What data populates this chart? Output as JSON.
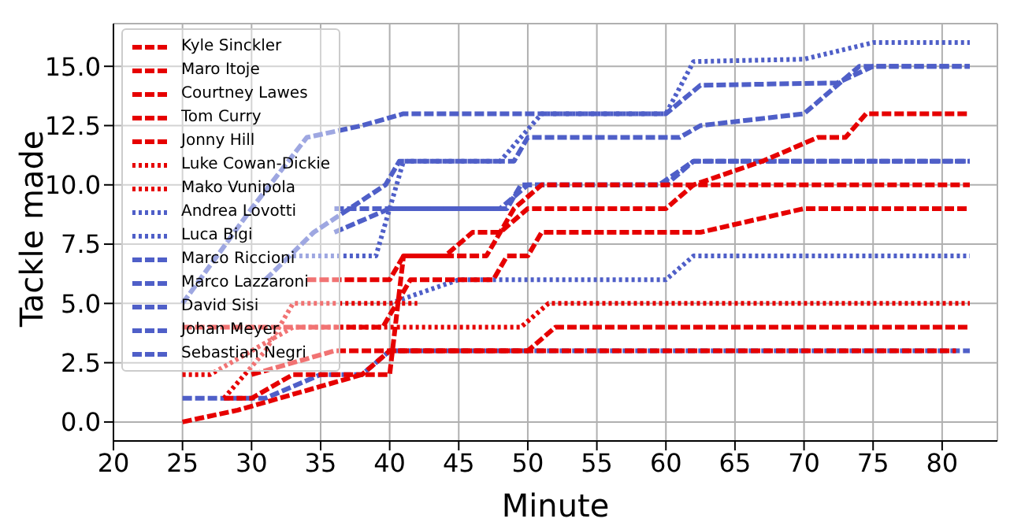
{
  "chart_data": {
    "type": "line",
    "xlabel": "Minute",
    "ylabel": "Tackle made",
    "xlim": [
      20,
      84
    ],
    "xticks": [
      20,
      25,
      30,
      35,
      40,
      45,
      50,
      55,
      60,
      65,
      70,
      75,
      80
    ],
    "ylim": [
      -0.8,
      16.8
    ],
    "yticks": [
      {
        "value": 0,
        "label": "0.0"
      },
      {
        "value": 2.5,
        "label": "2.5"
      },
      {
        "value": 5,
        "label": "5.0"
      },
      {
        "value": 7.5,
        "label": "7.5"
      },
      {
        "value": 10,
        "label": "10.0"
      },
      {
        "value": 12.5,
        "label": "12.5"
      },
      {
        "value": 15,
        "label": "15.0"
      }
    ],
    "grid": true,
    "legend": "top left",
    "series": [
      {
        "name": "Kyle Sinckler",
        "color": "#e60000",
        "line_style": "dashed",
        "x": [
          34,
          40,
          41,
          47,
          49,
          51,
          82
        ],
        "values": [
          6,
          6,
          7,
          7,
          9,
          10,
          10
        ]
      },
      {
        "name": "Maro Itoje",
        "color": "#e60000",
        "line_style": "dashed",
        "x": [
          25,
          39.5,
          41.5,
          47.5,
          48.5,
          50,
          51,
          62.5,
          70,
          82
        ],
        "values": [
          4,
          4,
          6,
          6,
          7,
          7,
          8,
          8,
          9,
          9
        ]
      },
      {
        "name": "Courtney Lawes",
        "color": "#e60000",
        "line_style": "dashed",
        "x": [
          30,
          36,
          40,
          50,
          52,
          82
        ],
        "values": [
          2,
          3,
          3,
          3,
          4,
          4
        ]
      },
      {
        "name": "Tom Curry",
        "color": "#e60000",
        "line_style": "dashed",
        "x": [
          25,
          29,
          32,
          35,
          38,
          40,
          41,
          44,
          46,
          48,
          50,
          60,
          62,
          67,
          71,
          73,
          74.5,
          82
        ],
        "values": [
          0,
          0.5,
          1,
          1.5,
          2,
          2,
          7,
          7,
          8,
          8,
          9,
          9,
          10,
          11,
          12,
          12,
          13,
          13
        ]
      },
      {
        "name": "Jonny Hill",
        "color": "#e60000",
        "line_style": "dashed",
        "x": [
          28,
          30,
          33,
          38,
          40,
          81
        ],
        "values": [
          1,
          1,
          2,
          2,
          3,
          3
        ]
      },
      {
        "name": "Luke Cowan-Dickie",
        "color": "#e60000",
        "line_style": "dotted",
        "x": [
          25,
          27,
          30,
          33,
          49.5,
          51.5,
          82
        ],
        "values": [
          2,
          2,
          3,
          4,
          4,
          5,
          5
        ]
      },
      {
        "name": "Mako Vunipola",
        "color": "#e60000",
        "line_style": "dotted",
        "x": [
          28,
          31,
          33,
          42
        ],
        "values": [
          1,
          3,
          5,
          5
        ]
      },
      {
        "name": "Andrea Lovotti",
        "color": "#4f5fc8",
        "line_style": "dotted",
        "x": [
          40,
          45,
          60,
          62,
          82
        ],
        "values": [
          5,
          6,
          6,
          7,
          7
        ]
      },
      {
        "name": "Luca Bigi",
        "color": "#4f5fc8",
        "line_style": "dotted",
        "x": [
          33,
          39,
          41,
          48,
          51,
          60,
          62,
          70,
          75,
          82
        ],
        "values": [
          7,
          7,
          11,
          11,
          13,
          13,
          15.2,
          15.3,
          16,
          16
        ]
      },
      {
        "name": "Marco Riccioni",
        "color": "#4f5fc8",
        "line_style": "dashed",
        "x": [
          31,
          34.5,
          39.7,
          40.7,
          49,
          50,
          61,
          62.5,
          70,
          74,
          82
        ],
        "values": [
          6,
          8,
          10,
          11,
          11,
          12,
          12,
          12.5,
          13,
          15,
          15
        ]
      },
      {
        "name": "Marco Lazzaroni",
        "color": "#4f5fc8",
        "line_style": "dashed",
        "x": [
          36,
          40,
          48,
          50,
          60,
          62,
          82
        ],
        "values": [
          8,
          9,
          9,
          10,
          10,
          11,
          11
        ]
      },
      {
        "name": "David Sisi",
        "color": "#4f5fc8",
        "line_style": "dashed",
        "x": [
          36,
          48.5,
          49.5,
          59.5,
          62,
          82
        ],
        "values": [
          9,
          9,
          10,
          10,
          11,
          11
        ]
      },
      {
        "name": "Johan Meyer",
        "color": "#4f5fc8",
        "line_style": "dashed",
        "x": [
          25,
          30,
          34,
          38,
          41,
          60,
          62.5,
          72.4,
          75,
          82
        ],
        "values": [
          5,
          9,
          12,
          12.5,
          13,
          13,
          14.2,
          14.3,
          15,
          15
        ]
      },
      {
        "name": "Sebastian Negri",
        "color": "#4f5fc8",
        "line_style": "dashed",
        "x": [
          25,
          31,
          35,
          38,
          40,
          82
        ],
        "values": [
          1,
          1,
          2,
          2,
          3,
          3
        ]
      }
    ]
  }
}
